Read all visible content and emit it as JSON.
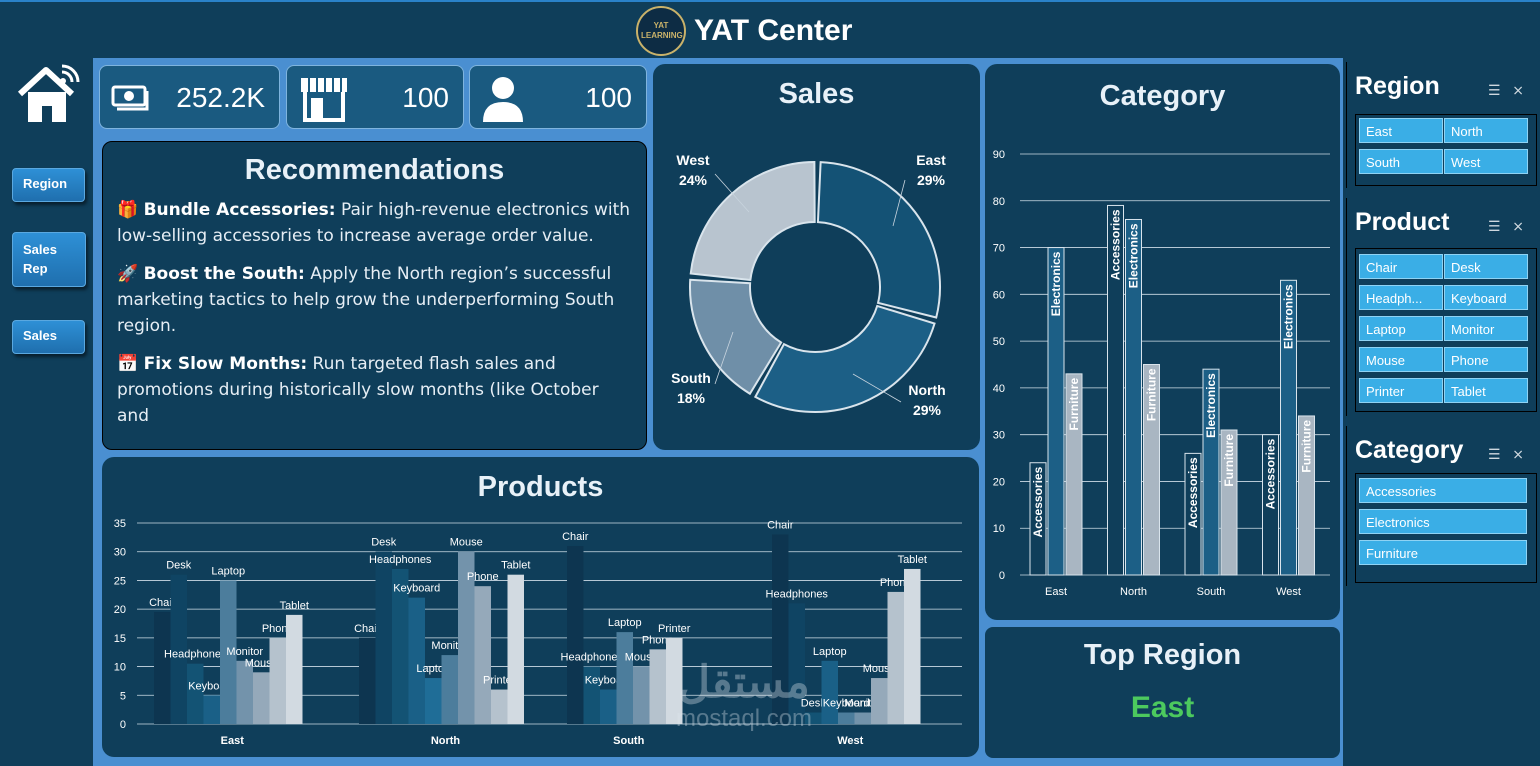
{
  "header": {
    "title": "YAT Center",
    "logo_text": "YAT LEARNING"
  },
  "nav": {
    "items": [
      "Region",
      "Sales Rep",
      "Sales"
    ]
  },
  "kpis": [
    {
      "icon": "money-icon",
      "value": "252.2K"
    },
    {
      "icon": "store-icon",
      "value": "100"
    },
    {
      "icon": "user-icon",
      "value": "100"
    }
  ],
  "recommendations": {
    "title": "Recommendations",
    "items": [
      {
        "emoji": "🎁",
        "head": "Bundle Accessories:",
        "text": " Pair high-revenue electronics with low-selling accessories to increase average order value."
      },
      {
        "emoji": "🚀",
        "head": "Boost the South:",
        "text": " Apply the North region’s successful marketing tactics to help grow the underperforming South region."
      },
      {
        "emoji": "📅",
        "head": "Fix Slow Months:",
        "text": " Run targeted flash sales and promotions during historically slow months (like October and"
      }
    ]
  },
  "sales_chart": {
    "title": "Sales",
    "slices": [
      {
        "label": "East",
        "pct": 29,
        "pct_label": "29%",
        "color": "#145275"
      },
      {
        "label": "North",
        "pct": 29,
        "pct_label": "29%",
        "color": "#1c5f86"
      },
      {
        "label": "South",
        "pct": 18,
        "pct_label": "18%",
        "color": "#6f8fa8"
      },
      {
        "label": "West",
        "pct": 24,
        "pct_label": "24%",
        "color": "#b8c4cf"
      }
    ]
  },
  "category_chart": {
    "title": "Category",
    "regions": [
      "East",
      "North",
      "South",
      "West"
    ],
    "series": [
      {
        "name": "Accessories",
        "values": [
          24,
          79,
          26,
          30
        ]
      },
      {
        "name": "Electronics",
        "values": [
          70,
          76,
          44,
          63
        ]
      },
      {
        "name": "Furniture",
        "values": [
          43,
          45,
          31,
          34
        ]
      }
    ],
    "y_ticks": [
      "0",
      "10",
      "20",
      "30",
      "40",
      "50",
      "60",
      "70",
      "80",
      "90"
    ],
    "ymax": 90
  },
  "top_region": {
    "title": "Top Region",
    "value": "East"
  },
  "products_chart": {
    "title": "Products",
    "y_ticks": [
      "0",
      "5",
      "10",
      "15",
      "20",
      "25",
      "30",
      "35"
    ],
    "ymax": 35,
    "groups": [
      {
        "region": "East",
        "bars": [
          {
            "name": "Chair",
            "value": 19.5
          },
          {
            "name": "Desk",
            "value": 26
          },
          {
            "name": "Headphones",
            "value": 10.5
          },
          {
            "name": "Keyboard",
            "value": 5
          },
          {
            "name": "Laptop",
            "value": 25
          },
          {
            "name": "Monitor",
            "value": 11
          },
          {
            "name": "Mouse",
            "value": 9
          },
          {
            "name": "Phone",
            "value": 15
          },
          {
            "name": "Tablet",
            "value": 19
          }
        ]
      },
      {
        "region": "North",
        "bars": [
          {
            "name": "Chair",
            "value": 15
          },
          {
            "name": "Desk",
            "value": 30
          },
          {
            "name": "Headphones",
            "value": 27
          },
          {
            "name": "Keyboard",
            "value": 22
          },
          {
            "name": "Laptop",
            "value": 8
          },
          {
            "name": "Monitor",
            "value": 12
          },
          {
            "name": "Mouse",
            "value": 30
          },
          {
            "name": "Phone",
            "value": 24
          },
          {
            "name": "Printer",
            "value": 6
          },
          {
            "name": "Tablet",
            "value": 26
          }
        ]
      },
      {
        "region": "South",
        "bars": [
          {
            "name": "Chair",
            "value": 31
          },
          {
            "name": "Headphones",
            "value": 10
          },
          {
            "name": "Keyboard",
            "value": 6
          },
          {
            "name": "Laptop",
            "value": 16
          },
          {
            "name": "Mouse",
            "value": 10
          },
          {
            "name": "Phone",
            "value": 13
          },
          {
            "name": "Printer",
            "value": 15
          }
        ]
      },
      {
        "region": "West",
        "bars": [
          {
            "name": "Chair",
            "value": 33
          },
          {
            "name": "Headphones",
            "value": 21
          },
          {
            "name": "Desk",
            "value": 2
          },
          {
            "name": "Laptop",
            "value": 11
          },
          {
            "name": "Keyboard",
            "value": 2
          },
          {
            "name": "Monitor",
            "value": 2
          },
          {
            "name": "Mouse",
            "value": 8
          },
          {
            "name": "Phone",
            "value": 23
          },
          {
            "name": "Tablet",
            "value": 27
          }
        ]
      }
    ]
  },
  "watermark": {
    "text": "mostaql.com",
    "arabic": "مستقل"
  },
  "slicers": {
    "region": {
      "title": "Region",
      "items": [
        "East",
        "North",
        "South",
        "West"
      ]
    },
    "product": {
      "title": "Product",
      "items": [
        "Chair",
        "Desk",
        "Headph...",
        "Keyboard",
        "Laptop",
        "Monitor",
        "Mouse",
        "Phone",
        "Printer",
        "Tablet"
      ]
    },
    "category": {
      "title": "Category",
      "items": [
        "Accessories",
        "Electronics",
        "Furniture"
      ]
    }
  },
  "colors": {
    "bg": "#0f3e5a",
    "canvas": "#4a8fd1",
    "accent": "#3aaee6",
    "top_region": "#4cc95e"
  }
}
